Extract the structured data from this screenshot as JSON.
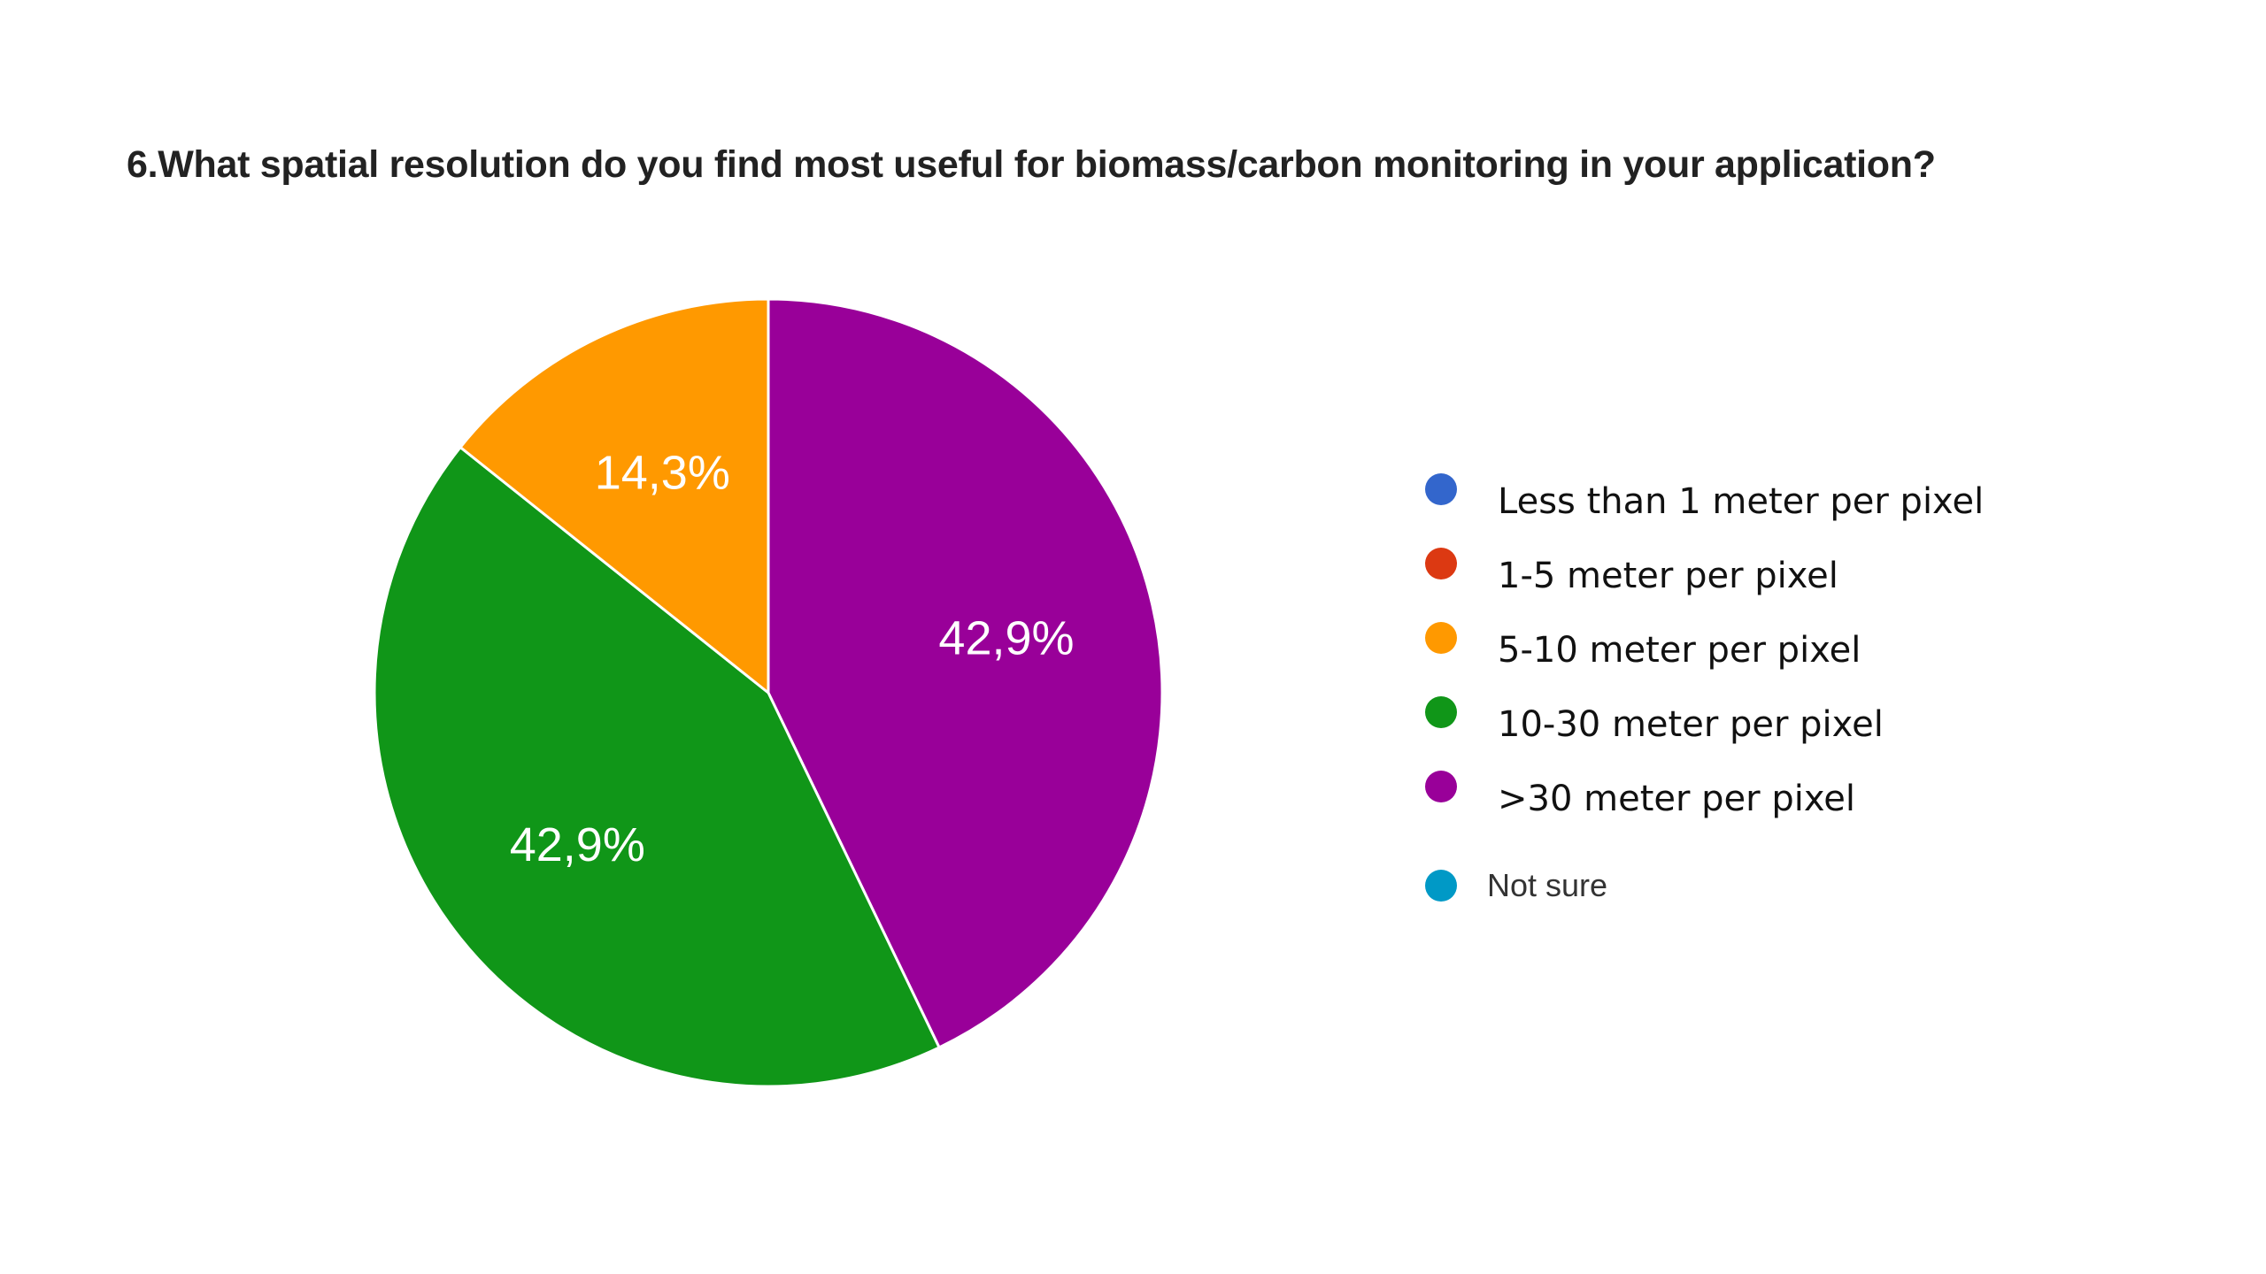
{
  "chart_data": {
    "type": "pie",
    "title": "6.What spatial resolution do you find most useful for biomass/carbon monitoring in your application?",
    "categories": [
      "Less than 1 meter per pixel",
      "1-5 meter per pixel",
      "5-10 meter per pixel",
      "10-30 meter per pixel",
      ">30 meter per pixel",
      "Not sure"
    ],
    "values": [
      0,
      0,
      14.3,
      42.9,
      42.9,
      0
    ],
    "data_labels": [
      "",
      "",
      "14,3%",
      "42,9%",
      "42,9%",
      ""
    ],
    "colors": [
      "#3366cc",
      "#dc3912",
      "#ff9900",
      "#109618",
      "#990099",
      "#0099c6"
    ],
    "legend_position": "right"
  }
}
